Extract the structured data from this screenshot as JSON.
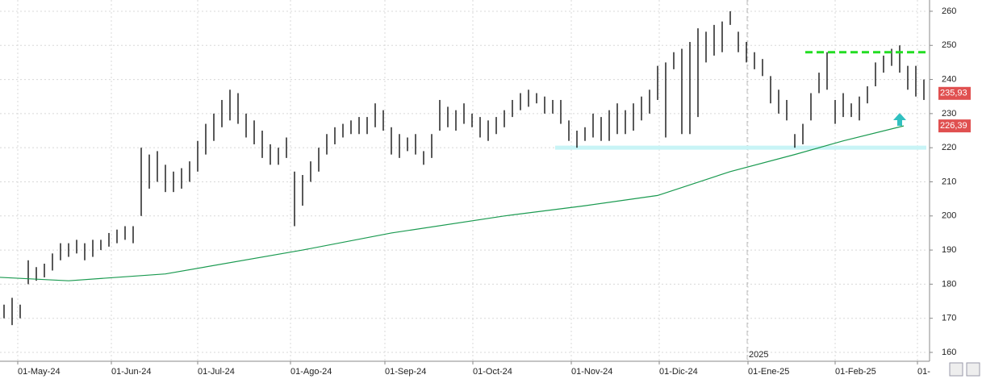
{
  "chart_data": {
    "type": "ohlc",
    "high": [
      174,
      176,
      174,
      187,
      185,
      186,
      189,
      192,
      192,
      193,
      192,
      193,
      193,
      195,
      196,
      197,
      197,
      220,
      218,
      219,
      215,
      213,
      214,
      216,
      222,
      227,
      230,
      234,
      237,
      236,
      230,
      228,
      225,
      221,
      220,
      223,
      213,
      212,
      216,
      220,
      224,
      226,
      227,
      228,
      229,
      229,
      233,
      231,
      226,
      224,
      223,
      224,
      219,
      224,
      234,
      232,
      231,
      233,
      230,
      229,
      228,
      229,
      231,
      234,
      236,
      237,
      236,
      235,
      234,
      234,
      228,
      225,
      226,
      230,
      229,
      231,
      233,
      231,
      233,
      235,
      237,
      244,
      245,
      248,
      249,
      251,
      255,
      254,
      256,
      257,
      260,
      254,
      251,
      248,
      246,
      241,
      237,
      234,
      224,
      227,
      236,
      242,
      248,
      234,
      236,
      233,
      235,
      238,
      245,
      247,
      249,
      250,
      244,
      244,
      240
    ],
    "low": [
      170,
      168,
      170,
      180,
      181,
      182,
      184,
      187,
      188,
      189,
      187,
      188,
      190,
      191,
      192,
      193,
      192,
      200,
      208,
      210,
      207,
      207,
      208,
      210,
      213,
      218,
      222,
      226,
      228,
      227,
      223,
      221,
      217,
      215,
      215,
      217,
      197,
      203,
      210,
      213,
      218,
      221,
      223,
      224,
      224,
      224,
      226,
      225,
      218,
      217,
      219,
      218,
      215,
      217,
      225,
      226,
      225,
      227,
      226,
      223,
      222,
      224,
      226,
      229,
      231,
      232,
      233,
      230,
      230,
      227,
      222,
      220,
      222,
      223,
      222,
      222,
      224,
      224,
      225,
      228,
      230,
      234,
      223,
      243,
      224,
      224,
      229,
      245,
      247,
      248,
      256,
      248,
      245,
      243,
      241,
      233,
      230,
      228,
      220,
      221,
      228,
      236,
      237,
      227,
      229,
      229,
      228,
      233,
      238,
      242,
      244,
      242,
      237,
      235,
      234
    ],
    "bar_color": "#000000",
    "moving_average": {
      "color": "#1a9a50",
      "x": [
        -0.5,
        8,
        20,
        37,
        48,
        62,
        72,
        81,
        90,
        98,
        104,
        111.5
      ],
      "values": [
        182,
        181,
        183,
        190,
        195,
        200,
        203,
        206,
        213,
        218,
        222,
        226.39
      ],
      "value_labels": [
        null,
        null,
        null,
        null,
        null,
        null,
        null,
        null,
        null,
        null,
        null,
        "226,39"
      ]
    },
    "last_price": {
      "value": 235.93,
      "label": "235,93"
    },
    "resistance": {
      "value": 248,
      "x": [
        99.3,
        114.3
      ],
      "color": "#22dd22"
    },
    "support": {
      "value": 220,
      "x": [
        68.3,
        114.3
      ],
      "color": "#c8f4f6"
    },
    "year_marker": {
      "value": 92.1,
      "label": "2025"
    },
    "xlim": [
      -0.5,
      114.5
    ],
    "xticks": [
      {
        "value": 1.7,
        "label": "01-May-24"
      },
      {
        "value": 13.3,
        "label": "01-Jun-24"
      },
      {
        "value": 24,
        "label": "01-Jul-24"
      },
      {
        "value": 35.5,
        "label": "01-Ago-24"
      },
      {
        "value": 47.2,
        "label": "01-Sep-24"
      },
      {
        "value": 58.1,
        "label": "01-Oct-24"
      },
      {
        "value": 70.3,
        "label": "01-Nov-24"
      },
      {
        "value": 81.2,
        "label": "01-Dic-24"
      },
      {
        "value": 92.2,
        "label": "01-Ene-25"
      },
      {
        "value": 103,
        "label": "01-Feb-25"
      },
      {
        "value": 113.2,
        "label": "01-"
      }
    ],
    "ylim": [
      157.4,
      263.3
    ],
    "yticks": [
      160,
      170,
      180,
      190,
      200,
      210,
      220,
      230,
      240,
      250,
      260
    ],
    "grid": true
  }
}
